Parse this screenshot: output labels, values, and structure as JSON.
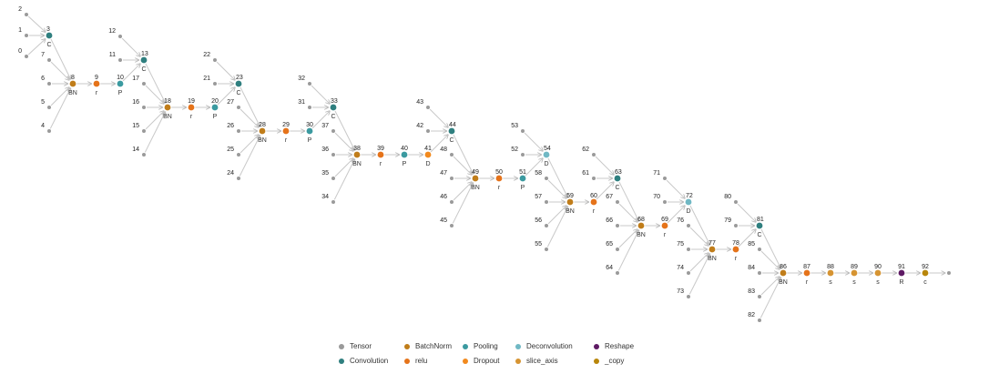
{
  "colors": {
    "Tensor": "#9a9a9a",
    "Convolution": "#2f7f7f",
    "BatchNorm": "#c07d1a",
    "relu": "#e5731a",
    "Pooling": "#3b9aa0",
    "Dropout": "#f28a1e",
    "Deconvolution": "#70b8c4",
    "slice_axis": "#d69432",
    "Reshape": "#5e1a64",
    "_copy": "#b8860b"
  },
  "legend": [
    {
      "type": "Tensor",
      "label": "Tensor"
    },
    {
      "type": "BatchNorm",
      "label": "BatchNorm"
    },
    {
      "type": "Pooling",
      "label": "Pooling"
    },
    {
      "type": "Deconvolution",
      "label": "Deconvolution"
    },
    {
      "type": "Reshape",
      "label": "Reshape"
    },
    {
      "type": "Convolution",
      "label": "Convolution"
    },
    {
      "type": "relu",
      "label": "relu"
    },
    {
      "type": "Dropout",
      "label": "Dropout"
    },
    {
      "type": "slice_axis",
      "label": "slice_axis"
    },
    {
      "type": "_copy",
      "label": "_copy"
    }
  ],
  "nodes": [
    {
      "id": "0",
      "type": "Tensor",
      "label": "0",
      "op": ""
    },
    {
      "id": "1",
      "type": "Tensor",
      "label": "1",
      "op": ""
    },
    {
      "id": "2",
      "type": "Tensor",
      "label": "2",
      "op": ""
    },
    {
      "id": "3",
      "type": "Convolution",
      "label": "3",
      "op": "C"
    },
    {
      "id": "4",
      "type": "Tensor",
      "label": "4",
      "op": ""
    },
    {
      "id": "5",
      "type": "Tensor",
      "label": "5",
      "op": ""
    },
    {
      "id": "6",
      "type": "Tensor",
      "label": "6",
      "op": ""
    },
    {
      "id": "7",
      "type": "Tensor",
      "label": "7",
      "op": ""
    },
    {
      "id": "8",
      "type": "BatchNorm",
      "label": "8",
      "op": "BN"
    },
    {
      "id": "9",
      "type": "relu",
      "label": "9",
      "op": "r"
    },
    {
      "id": "10",
      "type": "Pooling",
      "label": "10",
      "op": "P"
    },
    {
      "id": "11",
      "type": "Tensor",
      "label": "11",
      "op": ""
    },
    {
      "id": "12",
      "type": "Tensor",
      "label": "12",
      "op": ""
    },
    {
      "id": "13",
      "type": "Convolution",
      "label": "13",
      "op": "C"
    },
    {
      "id": "14",
      "type": "Tensor",
      "label": "14",
      "op": ""
    },
    {
      "id": "15",
      "type": "Tensor",
      "label": "15",
      "op": ""
    },
    {
      "id": "16",
      "type": "Tensor",
      "label": "16",
      "op": ""
    },
    {
      "id": "17",
      "type": "Tensor",
      "label": "17",
      "op": ""
    },
    {
      "id": "18",
      "type": "BatchNorm",
      "label": "18",
      "op": "BN"
    },
    {
      "id": "19",
      "type": "relu",
      "label": "19",
      "op": "r"
    },
    {
      "id": "20",
      "type": "Pooling",
      "label": "20",
      "op": "P"
    },
    {
      "id": "21",
      "type": "Tensor",
      "label": "21",
      "op": ""
    },
    {
      "id": "22",
      "type": "Tensor",
      "label": "22",
      "op": ""
    },
    {
      "id": "23",
      "type": "Convolution",
      "label": "23",
      "op": "C"
    },
    {
      "id": "24",
      "type": "Tensor",
      "label": "24",
      "op": ""
    },
    {
      "id": "25",
      "type": "Tensor",
      "label": "25",
      "op": ""
    },
    {
      "id": "26",
      "type": "Tensor",
      "label": "26",
      "op": ""
    },
    {
      "id": "27",
      "type": "Tensor",
      "label": "27",
      "op": ""
    },
    {
      "id": "28",
      "type": "BatchNorm",
      "label": "28",
      "op": "BN"
    },
    {
      "id": "29",
      "type": "relu",
      "label": "29",
      "op": "r"
    },
    {
      "id": "30",
      "type": "Pooling",
      "label": "30",
      "op": "P"
    },
    {
      "id": "31",
      "type": "Tensor",
      "label": "31",
      "op": ""
    },
    {
      "id": "32",
      "type": "Tensor",
      "label": "32",
      "op": ""
    },
    {
      "id": "33",
      "type": "Convolution",
      "label": "33",
      "op": "C"
    },
    {
      "id": "34",
      "type": "Tensor",
      "label": "34",
      "op": ""
    },
    {
      "id": "35",
      "type": "Tensor",
      "label": "35",
      "op": ""
    },
    {
      "id": "36",
      "type": "Tensor",
      "label": "36",
      "op": ""
    },
    {
      "id": "37",
      "type": "Tensor",
      "label": "37",
      "op": ""
    },
    {
      "id": "38",
      "type": "BatchNorm",
      "label": "38",
      "op": "BN"
    },
    {
      "id": "39",
      "type": "relu",
      "label": "39",
      "op": "r"
    },
    {
      "id": "40",
      "type": "Pooling",
      "label": "40",
      "op": "P"
    },
    {
      "id": "41",
      "type": "Dropout",
      "label": "41",
      "op": "D"
    },
    {
      "id": "42",
      "type": "Tensor",
      "label": "42",
      "op": ""
    },
    {
      "id": "43",
      "type": "Tensor",
      "label": "43",
      "op": ""
    },
    {
      "id": "44",
      "type": "Convolution",
      "label": "44",
      "op": "C"
    },
    {
      "id": "45",
      "type": "Tensor",
      "label": "45",
      "op": ""
    },
    {
      "id": "46",
      "type": "Tensor",
      "label": "46",
      "op": ""
    },
    {
      "id": "47",
      "type": "Tensor",
      "label": "47",
      "op": ""
    },
    {
      "id": "48",
      "type": "Tensor",
      "label": "48",
      "op": ""
    },
    {
      "id": "49",
      "type": "BatchNorm",
      "label": "49",
      "op": "BN"
    },
    {
      "id": "50",
      "type": "relu",
      "label": "50",
      "op": "r"
    },
    {
      "id": "51",
      "type": "Pooling",
      "label": "51",
      "op": "P"
    },
    {
      "id": "52",
      "type": "Tensor",
      "label": "52",
      "op": ""
    },
    {
      "id": "53",
      "type": "Tensor",
      "label": "53",
      "op": ""
    },
    {
      "id": "54",
      "type": "Deconvolution",
      "label": "54",
      "op": "D"
    },
    {
      "id": "55",
      "type": "Tensor",
      "label": "55",
      "op": ""
    },
    {
      "id": "56",
      "type": "Tensor",
      "label": "56",
      "op": ""
    },
    {
      "id": "57",
      "type": "Tensor",
      "label": "57",
      "op": ""
    },
    {
      "id": "58",
      "type": "Tensor",
      "label": "58",
      "op": ""
    },
    {
      "id": "59",
      "type": "BatchNorm",
      "label": "59",
      "op": "BN"
    },
    {
      "id": "60",
      "type": "relu",
      "label": "60",
      "op": "r"
    },
    {
      "id": "61",
      "type": "Tensor",
      "label": "61",
      "op": ""
    },
    {
      "id": "62",
      "type": "Tensor",
      "label": "62",
      "op": ""
    },
    {
      "id": "63",
      "type": "Convolution",
      "label": "63",
      "op": "C"
    },
    {
      "id": "64",
      "type": "Tensor",
      "label": "64",
      "op": ""
    },
    {
      "id": "65",
      "type": "Tensor",
      "label": "65",
      "op": ""
    },
    {
      "id": "66",
      "type": "Tensor",
      "label": "66",
      "op": ""
    },
    {
      "id": "67",
      "type": "Tensor",
      "label": "67",
      "op": ""
    },
    {
      "id": "68",
      "type": "BatchNorm",
      "label": "68",
      "op": "BN"
    },
    {
      "id": "69",
      "type": "relu",
      "label": "69",
      "op": "r"
    },
    {
      "id": "70",
      "type": "Tensor",
      "label": "70",
      "op": ""
    },
    {
      "id": "71",
      "type": "Tensor",
      "label": "71",
      "op": ""
    },
    {
      "id": "72",
      "type": "Deconvolution",
      "label": "72",
      "op": "D"
    },
    {
      "id": "73",
      "type": "Tensor",
      "label": "73",
      "op": ""
    },
    {
      "id": "74",
      "type": "Tensor",
      "label": "74",
      "op": ""
    },
    {
      "id": "75",
      "type": "Tensor",
      "label": "75",
      "op": ""
    },
    {
      "id": "76",
      "type": "Tensor",
      "label": "76",
      "op": ""
    },
    {
      "id": "77",
      "type": "BatchNorm",
      "label": "77",
      "op": "BN"
    },
    {
      "id": "78",
      "type": "relu",
      "label": "78",
      "op": "r"
    },
    {
      "id": "79",
      "type": "Tensor",
      "label": "79",
      "op": ""
    },
    {
      "id": "80",
      "type": "Tensor",
      "label": "80",
      "op": ""
    },
    {
      "id": "81",
      "type": "Convolution",
      "label": "81",
      "op": "C"
    },
    {
      "id": "82",
      "type": "Tensor",
      "label": "82",
      "op": ""
    },
    {
      "id": "83",
      "type": "Tensor",
      "label": "83",
      "op": ""
    },
    {
      "id": "84",
      "type": "Tensor",
      "label": "84",
      "op": ""
    },
    {
      "id": "85",
      "type": "Tensor",
      "label": "85",
      "op": ""
    },
    {
      "id": "86",
      "type": "BatchNorm",
      "label": "86",
      "op": "BN"
    },
    {
      "id": "87",
      "type": "relu",
      "label": "87",
      "op": "r"
    },
    {
      "id": "88",
      "type": "slice_axis",
      "label": "88",
      "op": "s"
    },
    {
      "id": "89",
      "type": "slice_axis",
      "label": "89",
      "op": "s"
    },
    {
      "id": "90",
      "type": "slice_axis",
      "label": "90",
      "op": "s"
    },
    {
      "id": "91",
      "type": "Reshape",
      "label": "91",
      "op": "R"
    },
    {
      "id": "92",
      "type": "_copy",
      "label": "92",
      "op": "c"
    },
    {
      "id": "out",
      "type": "Tensor",
      "label": "",
      "op": ""
    }
  ],
  "edges": [
    [
      "0",
      "3"
    ],
    [
      "1",
      "3"
    ],
    [
      "2",
      "3"
    ],
    [
      "3",
      "8"
    ],
    [
      "4",
      "8"
    ],
    [
      "5",
      "8"
    ],
    [
      "6",
      "8"
    ],
    [
      "7",
      "8"
    ],
    [
      "8",
      "9"
    ],
    [
      "9",
      "10"
    ],
    [
      "10",
      "13"
    ],
    [
      "11",
      "13"
    ],
    [
      "12",
      "13"
    ],
    [
      "13",
      "18"
    ],
    [
      "14",
      "18"
    ],
    [
      "15",
      "18"
    ],
    [
      "16",
      "18"
    ],
    [
      "17",
      "18"
    ],
    [
      "18",
      "19"
    ],
    [
      "19",
      "20"
    ],
    [
      "20",
      "23"
    ],
    [
      "21",
      "23"
    ],
    [
      "22",
      "23"
    ],
    [
      "23",
      "28"
    ],
    [
      "24",
      "28"
    ],
    [
      "25",
      "28"
    ],
    [
      "26",
      "28"
    ],
    [
      "27",
      "28"
    ],
    [
      "28",
      "29"
    ],
    [
      "29",
      "30"
    ],
    [
      "30",
      "33"
    ],
    [
      "31",
      "33"
    ],
    [
      "32",
      "33"
    ],
    [
      "33",
      "38"
    ],
    [
      "34",
      "38"
    ],
    [
      "35",
      "38"
    ],
    [
      "36",
      "38"
    ],
    [
      "37",
      "38"
    ],
    [
      "38",
      "39"
    ],
    [
      "39",
      "40"
    ],
    [
      "40",
      "41"
    ],
    [
      "41",
      "44"
    ],
    [
      "42",
      "44"
    ],
    [
      "43",
      "44"
    ],
    [
      "44",
      "49"
    ],
    [
      "45",
      "49"
    ],
    [
      "46",
      "49"
    ],
    [
      "47",
      "49"
    ],
    [
      "48",
      "49"
    ],
    [
      "49",
      "50"
    ],
    [
      "50",
      "51"
    ],
    [
      "51",
      "54"
    ],
    [
      "52",
      "54"
    ],
    [
      "53",
      "54"
    ],
    [
      "54",
      "59"
    ],
    [
      "55",
      "59"
    ],
    [
      "56",
      "59"
    ],
    [
      "57",
      "59"
    ],
    [
      "58",
      "59"
    ],
    [
      "59",
      "60"
    ],
    [
      "60",
      "63"
    ],
    [
      "61",
      "63"
    ],
    [
      "62",
      "63"
    ],
    [
      "63",
      "68"
    ],
    [
      "64",
      "68"
    ],
    [
      "65",
      "68"
    ],
    [
      "66",
      "68"
    ],
    [
      "67",
      "68"
    ],
    [
      "68",
      "69"
    ],
    [
      "69",
      "72"
    ],
    [
      "70",
      "72"
    ],
    [
      "71",
      "72"
    ],
    [
      "72",
      "77"
    ],
    [
      "73",
      "77"
    ],
    [
      "74",
      "77"
    ],
    [
      "75",
      "77"
    ],
    [
      "76",
      "77"
    ],
    [
      "77",
      "78"
    ],
    [
      "78",
      "81"
    ],
    [
      "79",
      "81"
    ],
    [
      "80",
      "81"
    ],
    [
      "81",
      "86"
    ],
    [
      "82",
      "86"
    ],
    [
      "83",
      "86"
    ],
    [
      "84",
      "86"
    ],
    [
      "85",
      "86"
    ],
    [
      "86",
      "87"
    ],
    [
      "87",
      "88"
    ],
    [
      "88",
      "89"
    ],
    [
      "89",
      "90"
    ],
    [
      "90",
      "91"
    ],
    [
      "91",
      "92"
    ],
    [
      "92",
      "out"
    ]
  ]
}
